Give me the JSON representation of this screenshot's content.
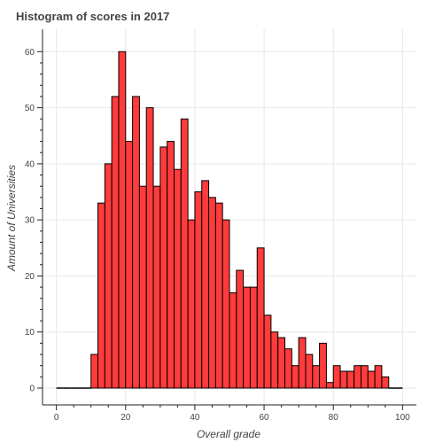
{
  "chart_data": {
    "type": "bar",
    "title": "Histogram of scores in 2017",
    "xlabel": "Overall grade",
    "ylabel": "Amount of Universities",
    "bin_width": 2,
    "bin_starts": [
      0,
      2,
      4,
      6,
      8,
      10,
      12,
      14,
      16,
      18,
      20,
      22,
      24,
      26,
      28,
      30,
      32,
      34,
      36,
      38,
      40,
      42,
      44,
      46,
      48,
      50,
      52,
      54,
      56,
      58,
      60,
      62,
      64,
      66,
      68,
      70,
      72,
      74,
      76,
      78,
      80,
      82,
      84,
      86,
      88,
      90,
      92,
      94,
      96,
      98
    ],
    "values": [
      0,
      0,
      0,
      0,
      0,
      6,
      33,
      40,
      52,
      60,
      44,
      52,
      36,
      50,
      36,
      43,
      44,
      39,
      48,
      30,
      35,
      37,
      34,
      33,
      30,
      17,
      21,
      18,
      18,
      25,
      13,
      10,
      9,
      7,
      4,
      9,
      6,
      4,
      8,
      1,
      4,
      3,
      3,
      4,
      4,
      3,
      4,
      2,
      0,
      0
    ],
    "xlim": [
      -4,
      104
    ],
    "ylim": [
      -3,
      64
    ],
    "x_ticks": [
      "0",
      "20",
      "40",
      "60",
      "80",
      "100"
    ],
    "y_ticks": [
      "0",
      "10",
      "20",
      "30",
      "40",
      "50",
      "60"
    ],
    "bar_color": "#ff3b3b",
    "grid": true
  }
}
